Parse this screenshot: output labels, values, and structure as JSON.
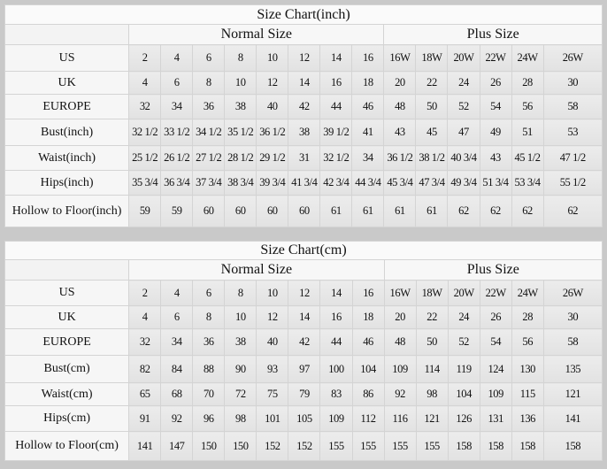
{
  "charts": [
    {
      "id": "inch",
      "title": "Size Chart(inch)",
      "normal_label": "Normal Size",
      "plus_label": "Plus Size",
      "rows": [
        {
          "label": "US",
          "values": [
            "2",
            "4",
            "6",
            "8",
            "10",
            "12",
            "14",
            "16",
            "16W",
            "18W",
            "20W",
            "22W",
            "24W",
            "26W"
          ]
        },
        {
          "label": "UK",
          "values": [
            "4",
            "6",
            "8",
            "10",
            "12",
            "14",
            "16",
            "18",
            "20",
            "22",
            "24",
            "26",
            "28",
            "30"
          ]
        },
        {
          "label": "EUROPE",
          "values": [
            "32",
            "34",
            "36",
            "38",
            "40",
            "42",
            "44",
            "46",
            "48",
            "50",
            "52",
            "54",
            "56",
            "58"
          ]
        },
        {
          "label": "Bust(inch)",
          "values": [
            "32 1/2",
            "33 1/2",
            "34 1/2",
            "35 1/2",
            "36 1/2",
            "38",
            "39 1/2",
            "41",
            "43",
            "45",
            "47",
            "49",
            "51",
            "53"
          ]
        },
        {
          "label": "Waist(inch)",
          "values": [
            "25 1/2",
            "26 1/2",
            "27 1/2",
            "28 1/2",
            "29 1/2",
            "31",
            "32 1/2",
            "34",
            "36 1/2",
            "38 1/2",
            "40 3/4",
            "43",
            "45 1/2",
            "47 1/2"
          ]
        },
        {
          "label": "Hips(inch)",
          "values": [
            "35 3/4",
            "36 3/4",
            "37 3/4",
            "38 3/4",
            "39 3/4",
            "41 3/4",
            "42 3/4",
            "44 3/4",
            "45 3/4",
            "47 3/4",
            "49 3/4",
            "51 3/4",
            "53 3/4",
            "55 1/2"
          ]
        },
        {
          "label": "Hollow to Floor(inch)",
          "values": [
            "59",
            "59",
            "60",
            "60",
            "60",
            "60",
            "61",
            "61",
            "61",
            "61",
            "62",
            "62",
            "62",
            "62"
          ]
        }
      ]
    },
    {
      "id": "cm",
      "title": "Size Chart(cm)",
      "normal_label": "Normal Size",
      "plus_label": "Plus Size",
      "rows": [
        {
          "label": "US",
          "values": [
            "2",
            "4",
            "6",
            "8",
            "10",
            "12",
            "14",
            "16",
            "16W",
            "18W",
            "20W",
            "22W",
            "24W",
            "26W"
          ]
        },
        {
          "label": "UK",
          "values": [
            "4",
            "6",
            "8",
            "10",
            "12",
            "14",
            "16",
            "18",
            "20",
            "22",
            "24",
            "26",
            "28",
            "30"
          ]
        },
        {
          "label": "EUROPE",
          "values": [
            "32",
            "34",
            "36",
            "38",
            "40",
            "42",
            "44",
            "46",
            "48",
            "50",
            "52",
            "54",
            "56",
            "58"
          ]
        },
        {
          "label": "Bust(cm)",
          "values": [
            "82",
            "84",
            "88",
            "90",
            "93",
            "97",
            "100",
            "104",
            "109",
            "114",
            "119",
            "124",
            "130",
            "135"
          ]
        },
        {
          "label": "Waist(cm)",
          "values": [
            "65",
            "68",
            "70",
            "72",
            "75",
            "79",
            "83",
            "86",
            "92",
            "98",
            "104",
            "109",
            "115",
            "121"
          ]
        },
        {
          "label": "Hips(cm)",
          "values": [
            "91",
            "92",
            "96",
            "98",
            "101",
            "105",
            "109",
            "112",
            "116",
            "121",
            "126",
            "131",
            "136",
            "141"
          ]
        },
        {
          "label": "Hollow to Floor(cm)",
          "values": [
            "141",
            "147",
            "150",
            "150",
            "152",
            "152",
            "155",
            "155",
            "155",
            "155",
            "158",
            "158",
            "158",
            "158"
          ]
        }
      ]
    }
  ]
}
